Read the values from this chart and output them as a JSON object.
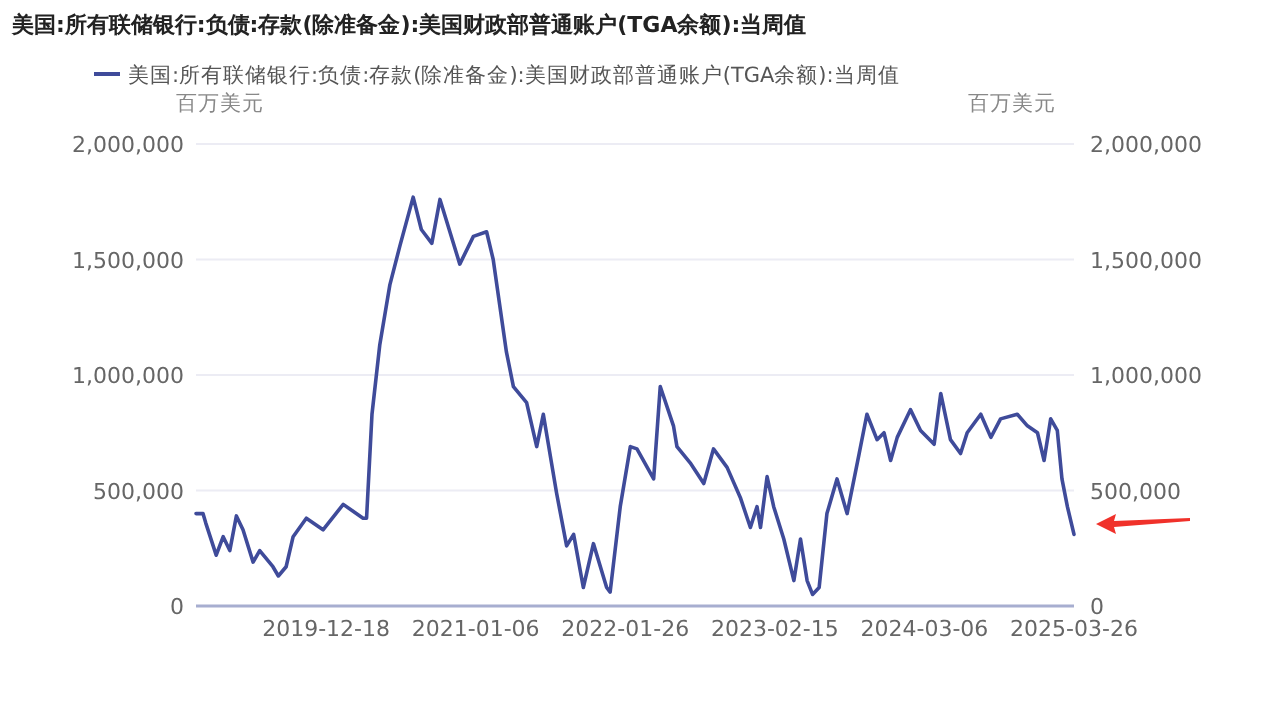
{
  "chart_data": {
    "type": "line",
    "title": "美国:所有联储银行:负债:存款(除准备金):美国财政部普通账户(TGA余额):当周值",
    "ylabel": "百万美元",
    "y2label": "百万美元",
    "x": [
      "2019-01-17",
      "2019-02-04",
      "2019-02-11",
      "2019-03-10",
      "2019-03-28",
      "2019-04-14",
      "2019-05-01",
      "2019-05-18",
      "2019-06-13",
      "2019-06-30",
      "2019-08-03",
      "2019-08-17",
      "2019-09-06",
      "2019-09-24",
      "2019-10-28",
      "2019-12-10",
      "2020-01-31",
      "2020-03-22",
      "2020-03-31",
      "2020-04-14",
      "2020-05-04",
      "2020-05-30",
      "2020-06-25",
      "2020-07-29",
      "2020-08-19",
      "2020-09-15",
      "2020-10-06",
      "2020-11-26",
      "2020-12-31",
      "2021-02-03",
      "2021-02-20",
      "2021-03-26",
      "2021-04-13",
      "2021-05-17",
      "2021-06-12",
      "2021-06-29",
      "2021-08-02",
      "2021-08-28",
      "2021-09-15",
      "2021-10-10",
      "2021-11-05",
      "2021-12-09",
      "2021-12-18",
      "2022-01-13",
      "2022-02-08",
      "2022-02-25",
      "2022-04-09",
      "2022-04-26",
      "2022-05-30",
      "2022-06-08",
      "2022-07-12",
      "2022-08-16",
      "2022-09-10",
      "2022-10-15",
      "2022-11-18",
      "2022-12-14",
      "2022-12-31",
      "2023-01-09",
      "2023-01-26",
      "2023-02-12",
      "2023-03-10",
      "2023-04-05",
      "2023-04-22",
      "2023-05-09",
      "2023-05-23",
      "2023-06-09",
      "2023-06-29",
      "2023-07-25",
      "2023-08-20",
      "2023-09-20",
      "2023-10-10",
      "2023-11-05",
      "2023-11-23",
      "2023-12-10",
      "2023-12-27",
      "2024-01-30",
      "2024-02-25",
      "2024-03-31",
      "2024-04-17",
      "2024-05-12",
      "2024-06-07",
      "2024-06-24",
      "2024-07-29",
      "2024-08-24",
      "2024-09-18",
      "2024-10-31",
      "2024-11-26",
      "2024-12-22",
      "2025-01-08",
      "2025-01-25",
      "2025-02-11",
      "2025-02-23",
      "2025-03-09",
      "2025-03-26"
    ],
    "series": [
      {
        "name": "美国:所有联储银行:负债:存款(除准备金):美国财政部普通账户(TGA余额):当周值",
        "color": "#3f4b9a",
        "values": [
          400000,
          400000,
          360000,
          220000,
          300000,
          240000,
          390000,
          330000,
          190000,
          240000,
          170000,
          130000,
          170000,
          300000,
          380000,
          330000,
          440000,
          380000,
          380000,
          830000,
          1130000,
          1390000,
          1560000,
          1770000,
          1630000,
          1570000,
          1760000,
          1480000,
          1600000,
          1620000,
          1500000,
          1100000,
          950000,
          880000,
          690000,
          830000,
          490000,
          260000,
          310000,
          80000,
          270000,
          80000,
          60000,
          430000,
          690000,
          680000,
          550000,
          950000,
          780000,
          690000,
          620000,
          530000,
          680000,
          600000,
          470000,
          340000,
          430000,
          340000,
          560000,
          430000,
          290000,
          110000,
          290000,
          110000,
          50000,
          80000,
          400000,
          550000,
          400000,
          660000,
          830000,
          720000,
          750000,
          630000,
          730000,
          850000,
          760000,
          700000,
          920000,
          720000,
          660000,
          750000,
          830000,
          730000,
          810000,
          830000,
          780000,
          750000,
          630000,
          810000,
          760000,
          550000,
          430000,
          310000
        ]
      }
    ],
    "xlim": [
      "2019-01-17",
      "2025-03-26"
    ],
    "xticks": [
      {
        "value": "2019-12-18",
        "label": "2019-12-18"
      },
      {
        "value": "2021-01-06",
        "label": "2021-01-06"
      },
      {
        "value": "2022-01-26",
        "label": "2022-01-26"
      },
      {
        "value": "2023-02-15",
        "label": "2023-02-15"
      },
      {
        "value": "2024-03-06",
        "label": "2024-03-06"
      },
      {
        "value": "2025-03-26",
        "label": "2025-03-26"
      }
    ],
    "ylim": [
      0,
      2000000
    ],
    "yticks": [
      {
        "value": 0,
        "label": "0"
      },
      {
        "value": 500000,
        "label": "500,000"
      },
      {
        "value": 1000000,
        "label": "1,000,000"
      },
      {
        "value": 1500000,
        "label": "1,500,000"
      },
      {
        "value": 2000000,
        "label": "2,000,000"
      }
    ],
    "y2lim": [
      0,
      2000000
    ],
    "y2ticks": [
      {
        "value": 0,
        "label": "0"
      },
      {
        "value": 500000,
        "label": "500,000"
      },
      {
        "value": 1000000,
        "label": "1,000,000"
      },
      {
        "value": 1500000,
        "label": "1,500,000"
      },
      {
        "value": 2000000,
        "label": "2,000,000"
      }
    ],
    "grid": "y",
    "legend": "top",
    "marker": "none",
    "line_style": "solid"
  }
}
